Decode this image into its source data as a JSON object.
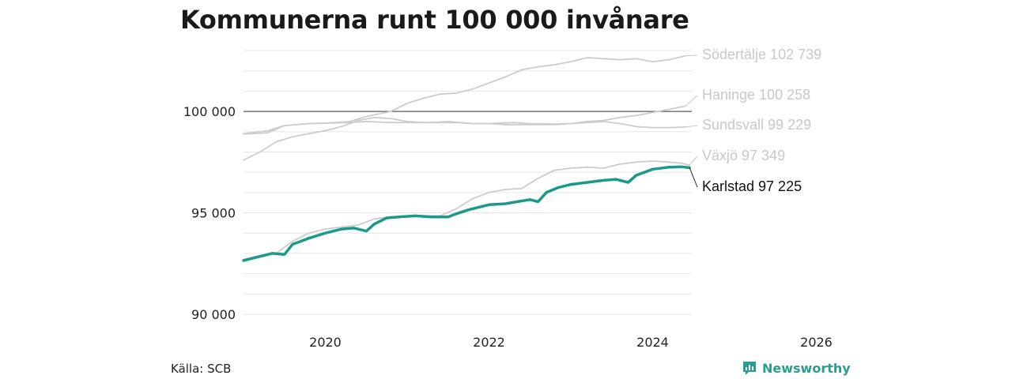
{
  "title": "Kommunerna runt 100 000 invånare",
  "source": "Källa: SCB",
  "brand": "Newsworthy",
  "chart_data": {
    "type": "line",
    "title": "Kommunerna runt 100 000 invånare",
    "x_range": [
      2019.0,
      2026.5
    ],
    "ylim": [
      90000,
      103000
    ],
    "x_ticks": [
      {
        "value": 2020,
        "label": "2020"
      },
      {
        "value": 2022,
        "label": "2022"
      },
      {
        "value": 2024,
        "label": "2024"
      },
      {
        "value": 2026,
        "label": "2026"
      }
    ],
    "y_ticks": [
      {
        "value": 90000,
        "label": "90 000"
      },
      {
        "value": 95000,
        "label": "95 000"
      },
      {
        "value": 100000,
        "label": "100 000"
      }
    ],
    "reference_line": 100000,
    "grid": true,
    "colors": {
      "highlight": "#1a9a88",
      "other": "#cccccc",
      "label_other": "#c8c8c8",
      "label_highlight": "#111111"
    },
    "series": [
      {
        "name": "Södertälje",
        "end_label": "Södertälje 102 739",
        "highlight": false,
        "points": [
          [
            2019.0,
            98900
          ],
          [
            2019.3,
            99050
          ],
          [
            2019.5,
            99300
          ],
          [
            2019.8,
            99400
          ],
          [
            2020.0,
            99420
          ],
          [
            2020.3,
            99500
          ],
          [
            2020.5,
            99750
          ],
          [
            2020.8,
            100000
          ],
          [
            2021.0,
            100400
          ],
          [
            2021.2,
            100650
          ],
          [
            2021.4,
            100850
          ],
          [
            2021.6,
            100900
          ],
          [
            2021.8,
            101100
          ],
          [
            2022.0,
            101400
          ],
          [
            2022.2,
            101700
          ],
          [
            2022.4,
            102050
          ],
          [
            2022.6,
            102200
          ],
          [
            2022.8,
            102300
          ],
          [
            2023.0,
            102450
          ],
          [
            2023.2,
            102650
          ],
          [
            2023.4,
            102600
          ],
          [
            2023.6,
            102550
          ],
          [
            2023.8,
            102600
          ],
          [
            2024.0,
            102450
          ],
          [
            2024.2,
            102550
          ],
          [
            2024.4,
            102739
          ]
        ]
      },
      {
        "name": "Haninge",
        "end_label": "Haninge 100 258",
        "highlight": false,
        "points": [
          [
            2019.0,
            97600
          ],
          [
            2019.2,
            98000
          ],
          [
            2019.4,
            98500
          ],
          [
            2019.6,
            98750
          ],
          [
            2019.8,
            98900
          ],
          [
            2020.0,
            99050
          ],
          [
            2020.2,
            99250
          ],
          [
            2020.4,
            99550
          ],
          [
            2020.6,
            99700
          ],
          [
            2020.8,
            99650
          ],
          [
            2021.0,
            99500
          ],
          [
            2021.2,
            99450
          ],
          [
            2021.4,
            99450
          ],
          [
            2021.6,
            99450
          ],
          [
            2021.8,
            99400
          ],
          [
            2022.0,
            99400
          ],
          [
            2022.2,
            99350
          ],
          [
            2022.4,
            99350
          ],
          [
            2022.6,
            99350
          ],
          [
            2022.8,
            99350
          ],
          [
            2023.0,
            99400
          ],
          [
            2023.2,
            99500
          ],
          [
            2023.4,
            99550
          ],
          [
            2023.6,
            99700
          ],
          [
            2023.8,
            99800
          ],
          [
            2024.0,
            99950
          ],
          [
            2024.2,
            100100
          ],
          [
            2024.4,
            100258
          ]
        ]
      },
      {
        "name": "Sundsvall",
        "end_label": "Sundsvall  99 229",
        "highlight": false,
        "points": [
          [
            2019.0,
            98880
          ],
          [
            2019.3,
            98950
          ],
          [
            2019.5,
            99300
          ],
          [
            2019.8,
            99400
          ],
          [
            2020.0,
            99420
          ],
          [
            2020.3,
            99450
          ],
          [
            2020.5,
            99500
          ],
          [
            2020.8,
            99450
          ],
          [
            2021.0,
            99450
          ],
          [
            2021.3,
            99450
          ],
          [
            2021.5,
            99500
          ],
          [
            2021.8,
            99400
          ],
          [
            2022.0,
            99400
          ],
          [
            2022.3,
            99450
          ],
          [
            2022.5,
            99400
          ],
          [
            2022.8,
            99380
          ],
          [
            2023.0,
            99400
          ],
          [
            2023.2,
            99450
          ],
          [
            2023.4,
            99500
          ],
          [
            2023.6,
            99400
          ],
          [
            2023.8,
            99250
          ],
          [
            2024.0,
            99200
          ],
          [
            2024.2,
            99200
          ],
          [
            2024.4,
            99229
          ]
        ]
      },
      {
        "name": "Växjö",
        "end_label": "Växjö  97 349",
        "highlight": false,
        "points": [
          [
            2019.0,
            92700
          ],
          [
            2019.2,
            92900
          ],
          [
            2019.4,
            93000
          ],
          [
            2019.6,
            93600
          ],
          [
            2019.8,
            94000
          ],
          [
            2020.0,
            94200
          ],
          [
            2020.2,
            94300
          ],
          [
            2020.4,
            94400
          ],
          [
            2020.6,
            94700
          ],
          [
            2020.8,
            94800
          ],
          [
            2021.0,
            94850
          ],
          [
            2021.2,
            94850
          ],
          [
            2021.4,
            94850
          ],
          [
            2021.6,
            95200
          ],
          [
            2021.8,
            95700
          ],
          [
            2022.0,
            96000
          ],
          [
            2022.2,
            96150
          ],
          [
            2022.4,
            96200
          ],
          [
            2022.6,
            96700
          ],
          [
            2022.8,
            97100
          ],
          [
            2023.0,
            97200
          ],
          [
            2023.2,
            97250
          ],
          [
            2023.4,
            97200
          ],
          [
            2023.6,
            97400
          ],
          [
            2023.8,
            97500
          ],
          [
            2024.0,
            97550
          ],
          [
            2024.2,
            97500
          ],
          [
            2024.35,
            97450
          ],
          [
            2024.45,
            97349
          ]
        ]
      },
      {
        "name": "Karlstad",
        "end_label": "Karlstad  97 225",
        "highlight": true,
        "points": [
          [
            2019.0,
            92650
          ],
          [
            2019.2,
            92850
          ],
          [
            2019.35,
            93000
          ],
          [
            2019.5,
            92950
          ],
          [
            2019.6,
            93450
          ],
          [
            2019.8,
            93750
          ],
          [
            2020.0,
            94000
          ],
          [
            2020.2,
            94200
          ],
          [
            2020.35,
            94250
          ],
          [
            2020.5,
            94100
          ],
          [
            2020.6,
            94450
          ],
          [
            2020.75,
            94750
          ],
          [
            2020.9,
            94800
          ],
          [
            2021.1,
            94850
          ],
          [
            2021.3,
            94800
          ],
          [
            2021.5,
            94800
          ],
          [
            2021.6,
            94950
          ],
          [
            2021.75,
            95150
          ],
          [
            2022.0,
            95400
          ],
          [
            2022.2,
            95450
          ],
          [
            2022.35,
            95550
          ],
          [
            2022.5,
            95650
          ],
          [
            2022.6,
            95550
          ],
          [
            2022.7,
            96000
          ],
          [
            2022.85,
            96250
          ],
          [
            2023.0,
            96400
          ],
          [
            2023.2,
            96500
          ],
          [
            2023.4,
            96600
          ],
          [
            2023.55,
            96650
          ],
          [
            2023.7,
            96500
          ],
          [
            2023.8,
            96850
          ],
          [
            2024.0,
            97150
          ],
          [
            2024.2,
            97250
          ],
          [
            2024.35,
            97270
          ],
          [
            2024.45,
            97225
          ]
        ]
      }
    ]
  }
}
